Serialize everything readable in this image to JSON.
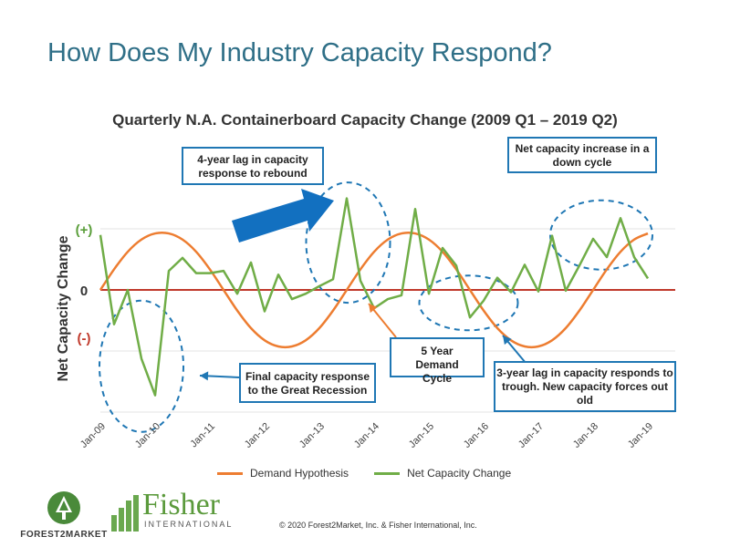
{
  "slide_title": "How Does My Industry Capacity Respond?",
  "colors": {
    "demand": "#ed7d31",
    "net": "#70ad47",
    "zero": "#c0392b",
    "callout": "#1f77b4",
    "arrow": "#1270c0",
    "title": "#2f6f87"
  },
  "chart_data": {
    "type": "line",
    "title": "Quarterly N.A. Containerboard Capacity Change (2009 Q1 – 2019 Q2)",
    "xlabel": "",
    "ylabel": "Net Capacity Change",
    "y_ticks": [
      "(+)",
      "0",
      "(-)"
    ],
    "x_tick_labels": [
      "Jan-09",
      "Jan-10",
      "Jan-11",
      "Jan-12",
      "Jan-13",
      "Jan-14",
      "Jan-15",
      "Jan-16",
      "Jan-17",
      "Jan-18",
      "Jan-19"
    ],
    "x_range": [
      0,
      42
    ],
    "y_range": [
      -1.6,
      1.35
    ],
    "series": [
      {
        "name": "Demand Hypothesis",
        "values": [
          0.0,
          0.27,
          0.5,
          0.66,
          0.74,
          0.74,
          0.66,
          0.5,
          0.27,
          0.0,
          -0.27,
          -0.5,
          -0.66,
          -0.74,
          -0.74,
          -0.66,
          -0.5,
          -0.27,
          0.0,
          0.27,
          0.5,
          0.66,
          0.74,
          0.74,
          0.66,
          0.5,
          0.27,
          0.0,
          -0.27,
          -0.5,
          -0.66,
          -0.74,
          -0.74,
          -0.66,
          -0.5,
          -0.27,
          0.0,
          0.27,
          0.5,
          0.66,
          0.74
        ]
      },
      {
        "name": "Net Capacity Change",
        "values": [
          0.72,
          -0.45,
          0.0,
          -0.9,
          -1.38,
          0.25,
          0.42,
          0.22,
          0.22,
          0.25,
          -0.05,
          0.36,
          -0.28,
          0.2,
          -0.12,
          -0.05,
          0.05,
          0.14,
          1.2,
          0.12,
          -0.24,
          -0.12,
          -0.07,
          1.06,
          -0.05,
          0.55,
          0.32,
          -0.36,
          -0.14,
          0.16,
          -0.03,
          0.33,
          -0.02,
          0.71,
          -0.01,
          0.32,
          0.67,
          0.43,
          0.94,
          0.43,
          0.15
        ]
      }
    ]
  },
  "callouts": {
    "lag4": "4-year lag in capacity response to rebound",
    "net_increase": "Net capacity increase in a down cycle",
    "demand_cycle": "5 Year Demand Cycle",
    "great_recession": "Final capacity response to the Great Recession",
    "lag3": "3-year lag in capacity responds to trough. New capacity forces out old"
  },
  "footer": "© 2020 Forest2Market, Inc. & Fisher International, Inc.",
  "logos": {
    "forest2market": "FOREST2MARKET",
    "fisher_name": "Fisher",
    "fisher_sub": "INTERNATIONAL"
  }
}
